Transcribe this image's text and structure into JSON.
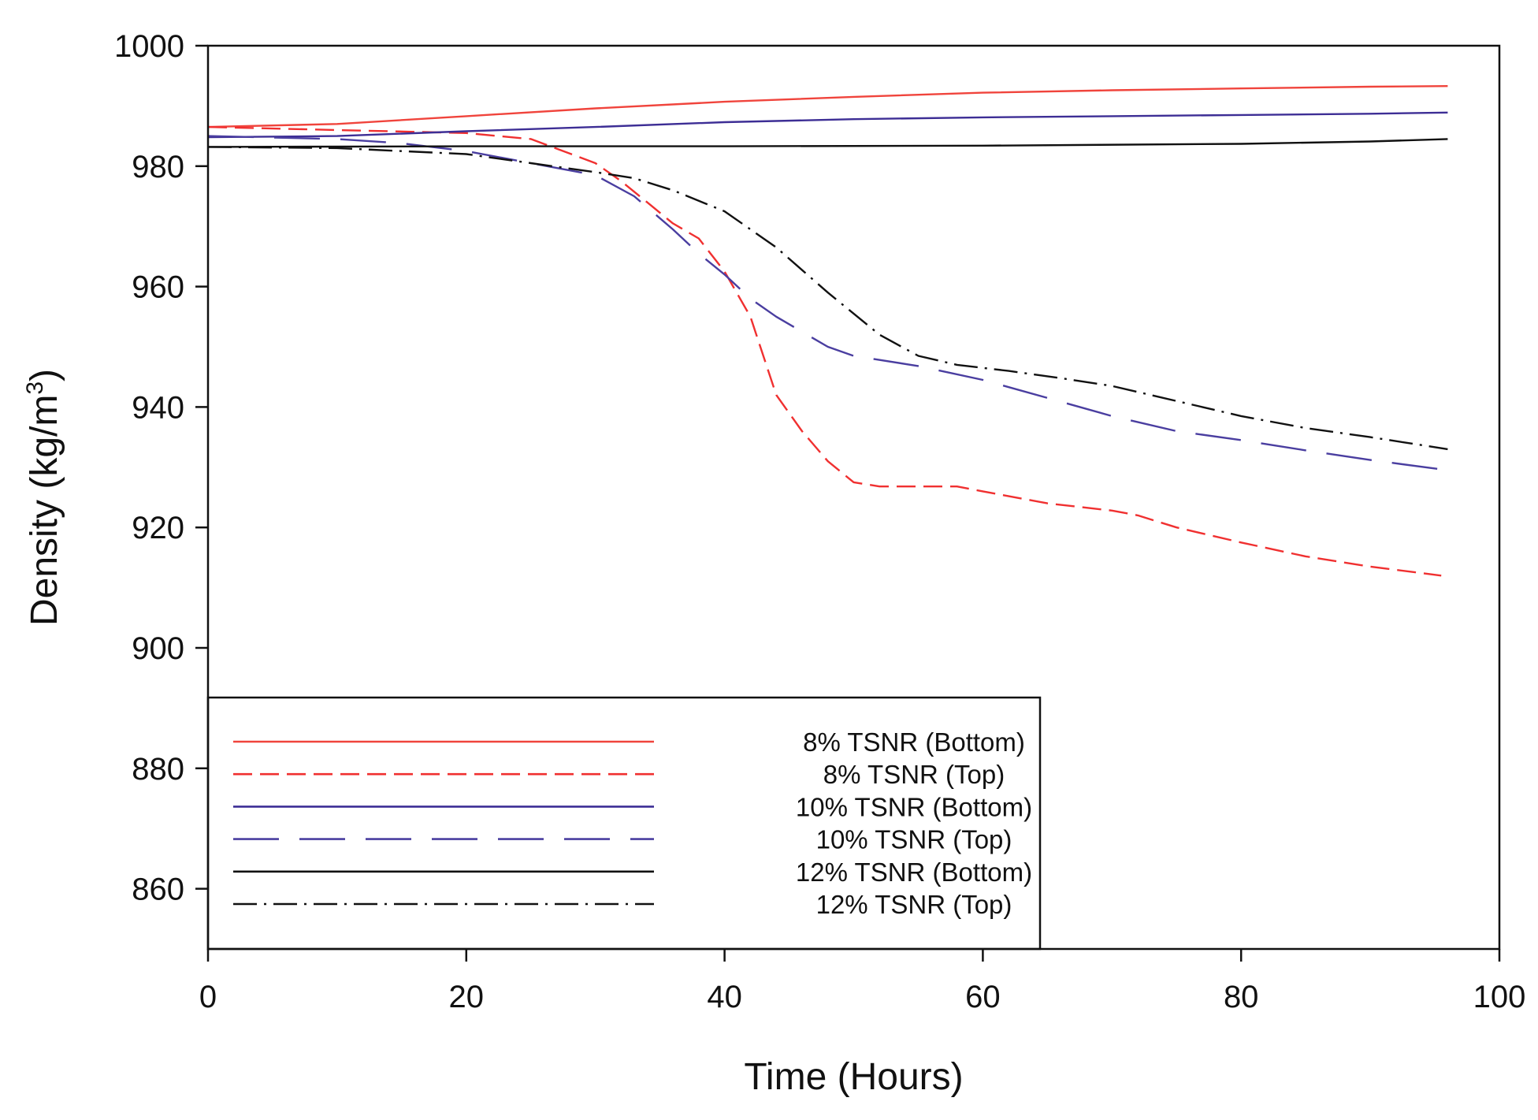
{
  "chart_data": {
    "type": "line",
    "title": "",
    "xlabel": "Time (Hours)",
    "ylabel_main": "Density (kg/m",
    "ylabel_sup": "3",
    "ylabel_close": ")",
    "xlim": [
      0,
      100
    ],
    "ylim": [
      850,
      1000
    ],
    "xticks": [
      0,
      20,
      40,
      60,
      80,
      100
    ],
    "yticks": [
      860,
      880,
      900,
      920,
      940,
      960,
      980,
      1000
    ],
    "grid": false,
    "legend_position": "bottom-left",
    "series": [
      {
        "name": "8% TSNR (Bottom)",
        "color": "#f0443c",
        "style": "solid",
        "x": [
          0,
          10,
          20,
          30,
          40,
          50,
          60,
          70,
          80,
          90,
          96
        ],
        "y": [
          986.5,
          987.0,
          988.3,
          989.6,
          990.7,
          991.5,
          992.2,
          992.6,
          992.9,
          993.2,
          993.3
        ]
      },
      {
        "name": "8% TSNR (Top)",
        "color": "#f03030",
        "style": "dashed",
        "x": [
          0,
          10,
          20,
          25,
          30,
          32,
          34,
          36,
          38,
          40,
          42,
          43,
          44,
          46,
          48,
          50,
          52,
          55,
          58,
          60,
          65,
          70,
          72,
          75,
          80,
          85,
          90,
          95.5
        ],
        "y": [
          986.5,
          986.0,
          985.5,
          984.5,
          980.5,
          977.5,
          974.0,
          970.5,
          968.0,
          962.5,
          955.0,
          948.5,
          942.0,
          936.0,
          931.0,
          927.5,
          926.8,
          926.8,
          926.8,
          926.0,
          924.0,
          922.8,
          922.0,
          920.0,
          917.5,
          915.2,
          913.5,
          912.0
        ]
      },
      {
        "name": "10% TSNR (Bottom)",
        "color": "#3d2e95",
        "style": "solid",
        "x": [
          0,
          10,
          20,
          30,
          40,
          50,
          60,
          70,
          80,
          90,
          96
        ],
        "y": [
          984.8,
          985.0,
          985.8,
          986.5,
          987.3,
          987.8,
          988.1,
          988.3,
          988.5,
          988.7,
          988.9
        ]
      },
      {
        "name": "10% TSNR (Top)",
        "color": "#4a3ea0",
        "style": "longdash",
        "x": [
          0,
          10,
          15,
          20,
          25,
          30,
          33,
          36,
          38,
          40,
          42,
          44,
          46,
          48,
          50,
          55,
          60,
          65,
          70,
          75,
          80,
          85,
          90,
          96
        ],
        "y": [
          985.0,
          984.5,
          983.8,
          982.5,
          980.5,
          978.5,
          975.0,
          969.5,
          965.5,
          962.0,
          958.0,
          955.0,
          952.5,
          950.0,
          948.5,
          946.8,
          944.5,
          941.5,
          938.5,
          936.0,
          934.5,
          932.8,
          931.2,
          929.5
        ]
      },
      {
        "name": "12% TSNR (Bottom)",
        "color": "#111111",
        "style": "solid",
        "x": [
          0,
          20,
          40,
          60,
          80,
          90,
          96
        ],
        "y": [
          983.2,
          983.3,
          983.3,
          983.4,
          983.7,
          984.1,
          984.5
        ]
      },
      {
        "name": "12% TSNR (Top)",
        "color": "#111111",
        "style": "dashdot",
        "x": [
          0,
          10,
          20,
          25,
          30,
          33,
          36,
          40,
          44,
          48,
          52,
          55,
          58,
          62,
          66,
          70,
          75,
          80,
          85,
          90,
          96
        ],
        "y": [
          983.2,
          983.0,
          982.0,
          980.5,
          979.0,
          978.0,
          976.0,
          972.5,
          966.5,
          959.0,
          952.0,
          948.5,
          947.0,
          946.0,
          944.8,
          943.5,
          941.0,
          938.5,
          936.5,
          935.0,
          933.0
        ]
      }
    ]
  }
}
